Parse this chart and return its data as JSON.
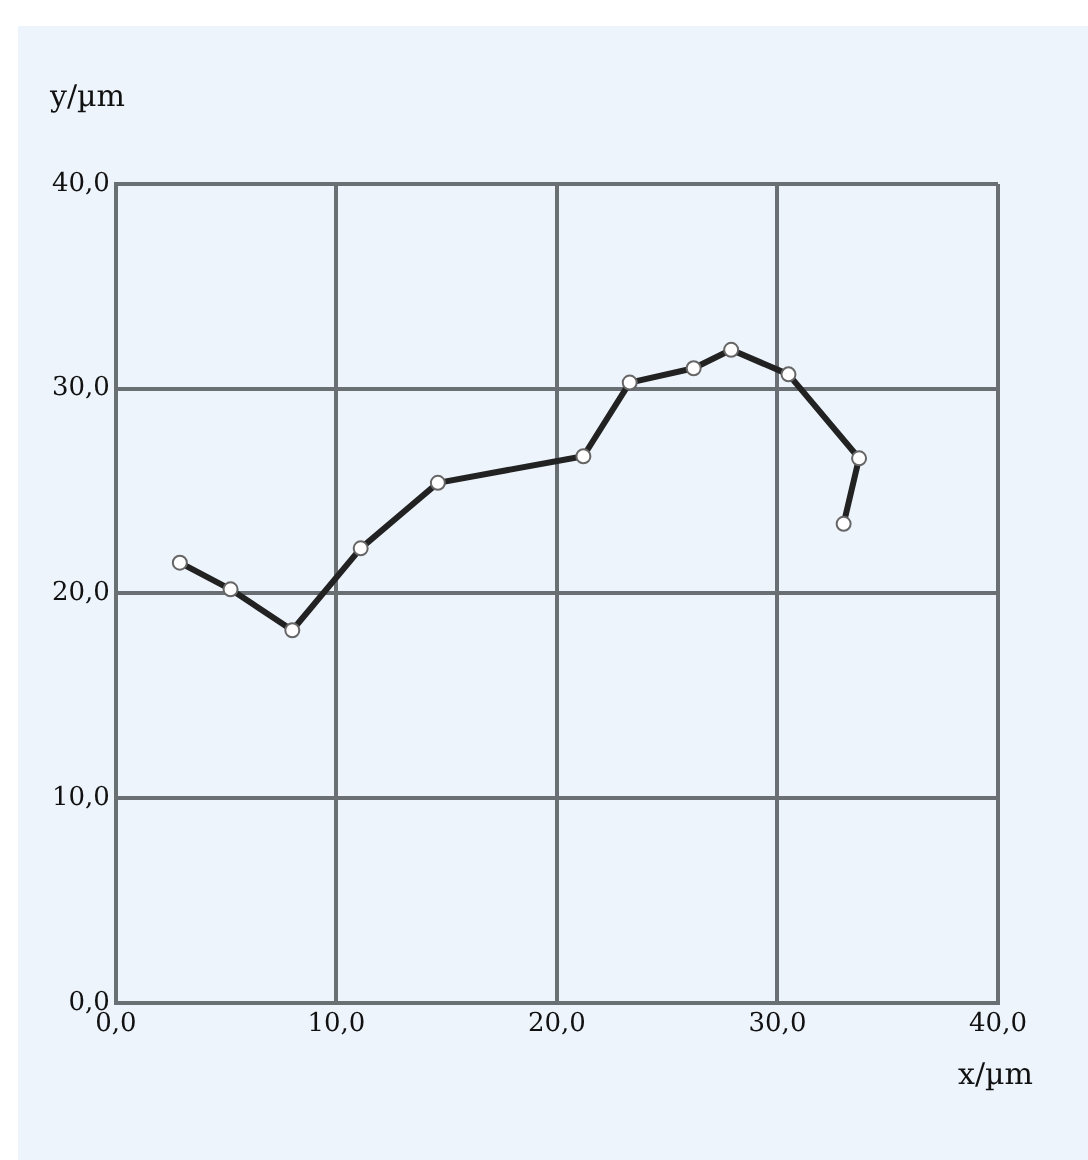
{
  "chart_data": {
    "type": "line",
    "xlabel": "x/µm",
    "ylabel": "y/µm",
    "x": [
      2.9,
      5.2,
      8.0,
      11.1,
      14.6,
      21.2,
      23.3,
      26.2,
      27.9,
      30.5,
      33.7,
      33.0
    ],
    "series": [
      {
        "color": "#222222",
        "values": [
          21.5,
          20.2,
          18.2,
          22.2,
          25.4,
          26.7,
          30.3,
          31.0,
          31.9,
          30.7,
          26.6,
          23.4
        ]
      }
    ],
    "xlim": [
      0,
      40
    ],
    "ylim": [
      0,
      40
    ],
    "xticks": [
      {
        "value": 0,
        "label": "0,0"
      },
      {
        "value": 10,
        "label": "10,0"
      },
      {
        "value": 20,
        "label": "20,0"
      },
      {
        "value": 30,
        "label": "30,0"
      },
      {
        "value": 40,
        "label": "40,0"
      }
    ],
    "yticks": [
      {
        "value": 0,
        "label": "0,0"
      },
      {
        "value": 10,
        "label": "10,0"
      },
      {
        "value": 20,
        "label": "20,0"
      },
      {
        "value": 30,
        "label": "30,0"
      },
      {
        "value": 40,
        "label": "40,0"
      }
    ],
    "grid": true,
    "legend": false,
    "marker": "circle",
    "line_style": "solid"
  }
}
